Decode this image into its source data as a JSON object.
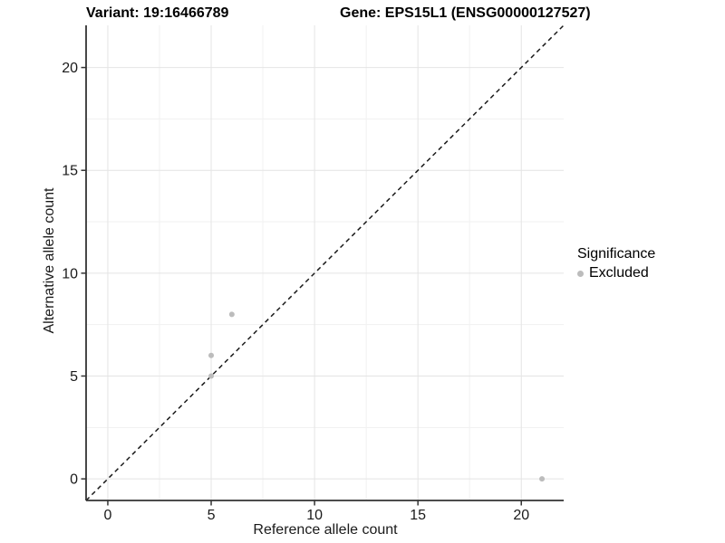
{
  "chart_data": {
    "type": "scatter",
    "title_segments": [
      "Variant: 19:16466789",
      "Gene: EPS15L1 (ENSG00000127527)"
    ],
    "xlabel": "Reference allele count",
    "ylabel": "Alternative allele count",
    "series": [
      {
        "name": "Excluded",
        "color": "#bcbcbc",
        "points": [
          {
            "x": 5,
            "y": 5
          },
          {
            "x": 5,
            "y": 6
          },
          {
            "x": 6,
            "y": 8
          },
          {
            "x": 21,
            "y": 0
          }
        ]
      }
    ],
    "x_ticks": [
      0,
      5,
      10,
      15,
      20
    ],
    "y_ticks": [
      0,
      5,
      10,
      15,
      20
    ],
    "x_minor_ticks": [
      2.5,
      7.5,
      12.5,
      17.5
    ],
    "y_minor_ticks": [
      2.5,
      7.5,
      12.5,
      17.5
    ],
    "xlim": [
      -1.05,
      22.05
    ],
    "ylim": [
      -1.05,
      22.05
    ],
    "grid": true,
    "reference_line": {
      "slope": 1,
      "intercept": 0,
      "style": "dashed",
      "color": "#1a1a1a"
    },
    "legend": {
      "position": "right",
      "title": "Significance",
      "items": [
        {
          "label": "Excluded",
          "color": "#bcbcbc"
        }
      ]
    }
  },
  "colors": {
    "background": "#ffffff",
    "grid_major": "#e4e4e4",
    "grid_minor": "#f1f1f1",
    "axis_line": "#333333",
    "tick_mark": "#333333",
    "point": "#bcbcbc",
    "text": "#1a1a1a"
  }
}
